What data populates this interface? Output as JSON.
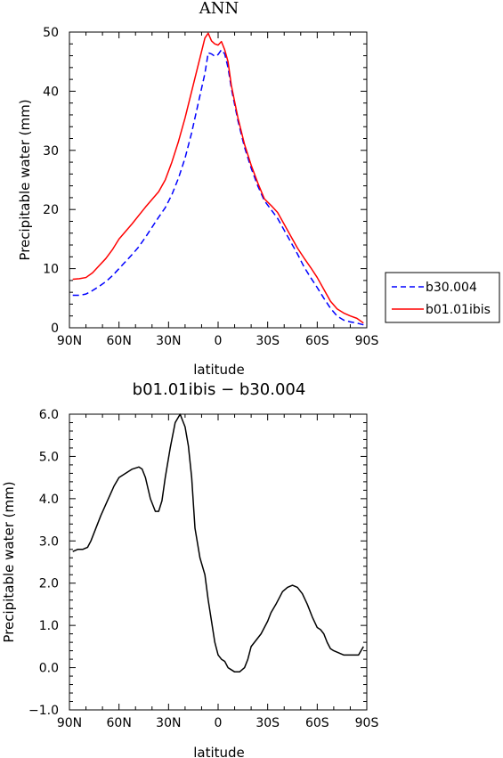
{
  "chart_data": [
    {
      "type": "line",
      "title": "ANN",
      "xlabel": "latitude",
      "ylabel": "Precipitable water (mm)",
      "xticks": [
        {
          "value": 90,
          "label": "90N"
        },
        {
          "value": 60,
          "label": "60N"
        },
        {
          "value": 30,
          "label": "30N"
        },
        {
          "value": 0,
          "label": "0"
        },
        {
          "value": -30,
          "label": "30S"
        },
        {
          "value": -60,
          "label": "60S"
        },
        {
          "value": -90,
          "label": "90S"
        }
      ],
      "yticks": [
        {
          "value": 0,
          "label": "0"
        },
        {
          "value": 10,
          "label": "10"
        },
        {
          "value": 20,
          "label": "20"
        },
        {
          "value": 30,
          "label": "30"
        },
        {
          "value": 40,
          "label": "40"
        },
        {
          "value": 50,
          "label": "50"
        }
      ],
      "xlim": [
        90,
        -90
      ],
      "ylim": [
        0,
        50
      ],
      "legend_position": "right",
      "series": [
        {
          "name": "b30.004",
          "color": "#0000ff",
          "dash": "dashed",
          "x": [
            88,
            84,
            80,
            76,
            72,
            68,
            64,
            60,
            56,
            52,
            48,
            44,
            40,
            36,
            32,
            28,
            24,
            20,
            16,
            12,
            8,
            6,
            4,
            2,
            0,
            -2,
            -4,
            -6,
            -8,
            -12,
            -16,
            -20,
            -24,
            -28,
            -32,
            -36,
            -40,
            -44,
            -48,
            -52,
            -56,
            -60,
            -64,
            -68,
            -72,
            -76,
            -80,
            -84,
            -88
          ],
          "y": [
            5.5,
            5.5,
            5.7,
            6.3,
            7.0,
            7.8,
            8.8,
            10.0,
            11.2,
            12.4,
            13.7,
            15.3,
            17.0,
            18.7,
            20.3,
            22.5,
            25.3,
            28.7,
            33.0,
            38.0,
            43.0,
            46.5,
            46.3,
            45.9,
            46.2,
            47.0,
            46.3,
            44.0,
            40.5,
            35.0,
            30.5,
            27.0,
            24.0,
            21.5,
            20.0,
            18.5,
            16.5,
            14.5,
            12.5,
            10.3,
            8.5,
            6.8,
            5.0,
            3.3,
            2.0,
            1.3,
            1.0,
            0.8,
            0.5
          ]
        },
        {
          "name": "b01.01ibis",
          "color": "#ff0000",
          "dash": "solid",
          "x": [
            88,
            84,
            80,
            76,
            72,
            68,
            64,
            60,
            56,
            52,
            48,
            44,
            40,
            36,
            32,
            28,
            24,
            20,
            16,
            12,
            8,
            6,
            4,
            2,
            0,
            -2,
            -4,
            -6,
            -8,
            -12,
            -16,
            -20,
            -24,
            -28,
            -32,
            -36,
            -40,
            -44,
            -48,
            -52,
            -56,
            -60,
            -64,
            -68,
            -72,
            -76,
            -80,
            -84,
            -88
          ],
          "y": [
            8.2,
            8.3,
            8.5,
            9.3,
            10.5,
            11.7,
            13.2,
            15.0,
            16.3,
            17.6,
            19.0,
            20.4,
            21.7,
            23.0,
            25.0,
            28.0,
            31.5,
            35.5,
            40.0,
            44.5,
            49.0,
            49.8,
            48.5,
            48.0,
            47.8,
            48.4,
            47.0,
            45.0,
            41.0,
            35.5,
            31.0,
            27.5,
            24.5,
            21.8,
            20.7,
            19.5,
            17.5,
            15.5,
            13.5,
            11.8,
            10.2,
            8.5,
            6.5,
            4.5,
            3.2,
            2.5,
            2.0,
            1.6,
            0.8
          ]
        }
      ]
    },
    {
      "type": "line",
      "title": "b01.01ibis − b30.004",
      "xlabel": "latitude",
      "ylabel": "Precipitable water (mm)",
      "xticks": [
        {
          "value": 90,
          "label": "90N"
        },
        {
          "value": 60,
          "label": "60N"
        },
        {
          "value": 30,
          "label": "30N"
        },
        {
          "value": 0,
          "label": "0"
        },
        {
          "value": -30,
          "label": "30S"
        },
        {
          "value": -60,
          "label": "60S"
        },
        {
          "value": -90,
          "label": "90S"
        }
      ],
      "yticks": [
        {
          "value": -1.0,
          "label": "−1.0"
        },
        {
          "value": 0.0,
          "label": "0.0"
        },
        {
          "value": 1.0,
          "label": "1.0"
        },
        {
          "value": 2.0,
          "label": "2.0"
        },
        {
          "value": 3.0,
          "label": "3.0"
        },
        {
          "value": 4.0,
          "label": "4.0"
        },
        {
          "value": 5.0,
          "label": "5.0"
        },
        {
          "value": 6.0,
          "label": "6.0"
        }
      ],
      "xlim": [
        90,
        -90
      ],
      "ylim": [
        -1.0,
        6.0
      ],
      "series": [
        {
          "color": "#000000",
          "dash": "solid",
          "x": [
            88,
            85,
            82,
            79,
            77,
            74,
            71,
            67,
            63,
            60,
            56,
            52,
            48,
            46,
            44,
            41,
            38,
            36,
            34,
            32,
            29,
            26,
            23,
            20,
            18,
            16,
            14,
            11,
            8,
            6,
            4,
            2,
            0,
            -2,
            -4,
            -6,
            -8,
            -10,
            -13,
            -16,
            -18,
            -20,
            -23,
            -26,
            -28,
            -30,
            -32,
            -35,
            -37,
            -39,
            -42,
            -45,
            -48,
            -51,
            -54,
            -57,
            -60,
            -62,
            -64,
            -66,
            -68,
            -70,
            -73,
            -76,
            -79,
            -82,
            -85,
            -88
          ],
          "y": [
            2.75,
            2.8,
            2.8,
            2.85,
            3.0,
            3.3,
            3.6,
            3.95,
            4.3,
            4.5,
            4.6,
            4.7,
            4.75,
            4.7,
            4.5,
            4.0,
            3.7,
            3.7,
            3.95,
            4.5,
            5.2,
            5.8,
            6.0,
            5.7,
            5.25,
            4.5,
            3.3,
            2.6,
            2.2,
            1.6,
            1.1,
            0.6,
            0.3,
            0.2,
            0.15,
            0.0,
            -0.05,
            -0.1,
            -0.1,
            0.0,
            0.2,
            0.5,
            0.65,
            0.8,
            0.95,
            1.1,
            1.3,
            1.5,
            1.65,
            1.8,
            1.9,
            1.95,
            1.9,
            1.75,
            1.5,
            1.2,
            0.95,
            0.9,
            0.8,
            0.6,
            0.45,
            0.4,
            0.35,
            0.3,
            0.3,
            0.3,
            0.3,
            0.5
          ]
        }
      ]
    }
  ]
}
